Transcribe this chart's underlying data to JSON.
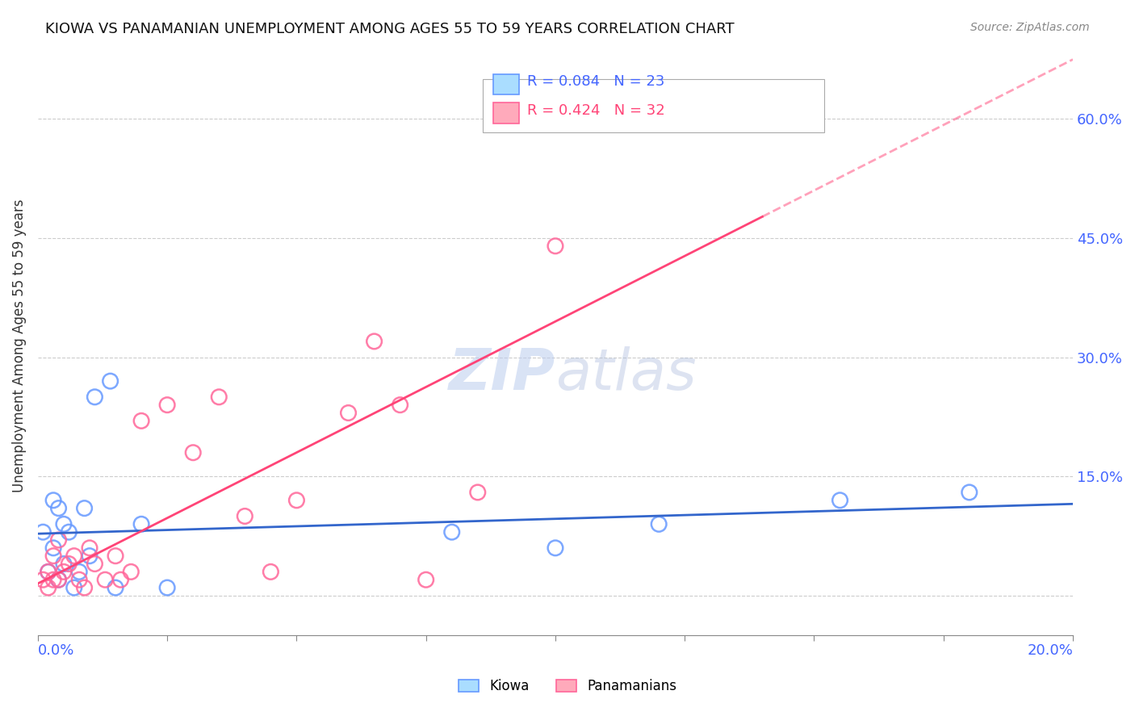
{
  "title": "KIOWA VS PANAMANIAN UNEMPLOYMENT AMONG AGES 55 TO 59 YEARS CORRELATION CHART",
  "source": "Source: ZipAtlas.com",
  "ylabel": "Unemployment Among Ages 55 to 59 years",
  "r_kiowa": 0.084,
  "n_kiowa": 23,
  "r_panamanian": 0.424,
  "n_panamanian": 32,
  "kiowa_color": "#6699FF",
  "panamanian_color": "#FF6699",
  "kiowa_line_color": "#3366CC",
  "panamanian_line_color": "#FF4477",
  "watermark_zip": "ZIP",
  "watermark_atlas": "atlas",
  "xlim": [
    0.0,
    0.2
  ],
  "ylim": [
    -0.05,
    0.68
  ],
  "yticks": [
    0.0,
    0.15,
    0.3,
    0.45,
    0.6
  ],
  "ytick_labels": [
    "",
    "15.0%",
    "30.0%",
    "45.0%",
    "60.0%"
  ],
  "kiowa_x": [
    0.001,
    0.002,
    0.003,
    0.003,
    0.004,
    0.004,
    0.005,
    0.005,
    0.006,
    0.007,
    0.008,
    0.009,
    0.01,
    0.011,
    0.014,
    0.015,
    0.02,
    0.025,
    0.08,
    0.1,
    0.12,
    0.155,
    0.18
  ],
  "kiowa_y": [
    0.08,
    0.03,
    0.06,
    0.12,
    0.11,
    0.02,
    0.09,
    0.04,
    0.08,
    0.01,
    0.03,
    0.11,
    0.05,
    0.25,
    0.27,
    0.01,
    0.09,
    0.01,
    0.08,
    0.06,
    0.09,
    0.12,
    0.13
  ],
  "panamanian_x": [
    0.001,
    0.002,
    0.002,
    0.003,
    0.003,
    0.004,
    0.004,
    0.005,
    0.006,
    0.007,
    0.008,
    0.009,
    0.01,
    0.011,
    0.013,
    0.015,
    0.016,
    0.018,
    0.02,
    0.025,
    0.03,
    0.035,
    0.04,
    0.045,
    0.05,
    0.06,
    0.065,
    0.07,
    0.075,
    0.085,
    0.1,
    0.14
  ],
  "panamanian_y": [
    0.02,
    0.03,
    0.01,
    0.05,
    0.02,
    0.07,
    0.02,
    0.03,
    0.04,
    0.05,
    0.02,
    0.01,
    0.06,
    0.04,
    0.02,
    0.05,
    0.02,
    0.03,
    0.22,
    0.24,
    0.18,
    0.25,
    0.1,
    0.03,
    0.12,
    0.23,
    0.32,
    0.24,
    0.02,
    0.13,
    0.44,
    0.6
  ]
}
